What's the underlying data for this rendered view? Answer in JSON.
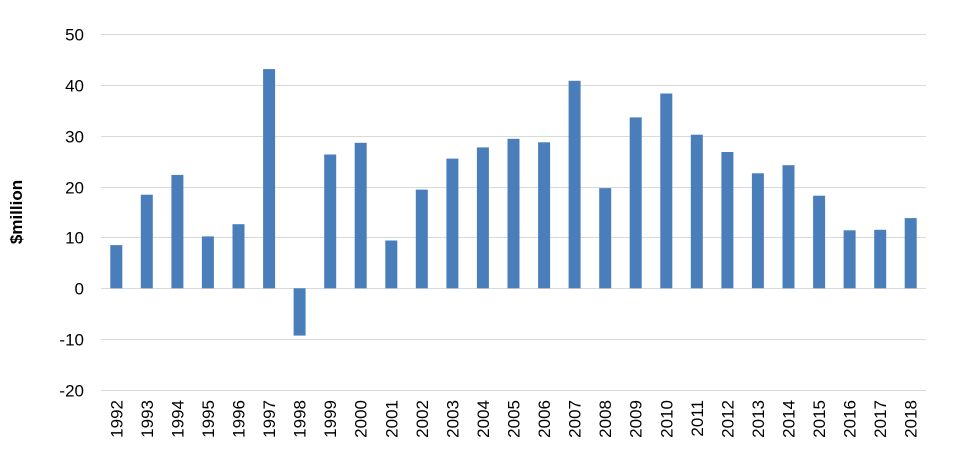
{
  "chart_data": {
    "type": "bar",
    "title": "",
    "xlabel": "",
    "ylabel": "$million",
    "ylim": [
      -20,
      50
    ],
    "yticks": [
      -20,
      -10,
      0,
      10,
      20,
      30,
      40,
      50
    ],
    "ytick_labels": [
      "-20",
      "-10",
      "0",
      "10",
      "20",
      "30",
      "40",
      "50"
    ],
    "grid": true,
    "legend": "none",
    "bar_color": "#4a7ebb",
    "categories": [
      "1992",
      "1993",
      "1994",
      "1995",
      "1996",
      "1997",
      "1998",
      "1999",
      "2000",
      "2001",
      "2002",
      "2003",
      "2004",
      "2005",
      "2006",
      "2007",
      "2008",
      "2009",
      "2010",
      "2011",
      "2012",
      "2013",
      "2014",
      "2015",
      "2016",
      "2017",
      "2018"
    ],
    "values": [
      8.5,
      18.4,
      22.3,
      10.2,
      12.6,
      43.1,
      -9.3,
      26.3,
      28.6,
      9.4,
      19.4,
      25.5,
      27.7,
      29.4,
      28.7,
      40.8,
      19.7,
      33.6,
      38.3,
      30.2,
      26.8,
      22.6,
      24.2,
      18.2,
      11.4,
      11.5,
      13.8
    ]
  }
}
